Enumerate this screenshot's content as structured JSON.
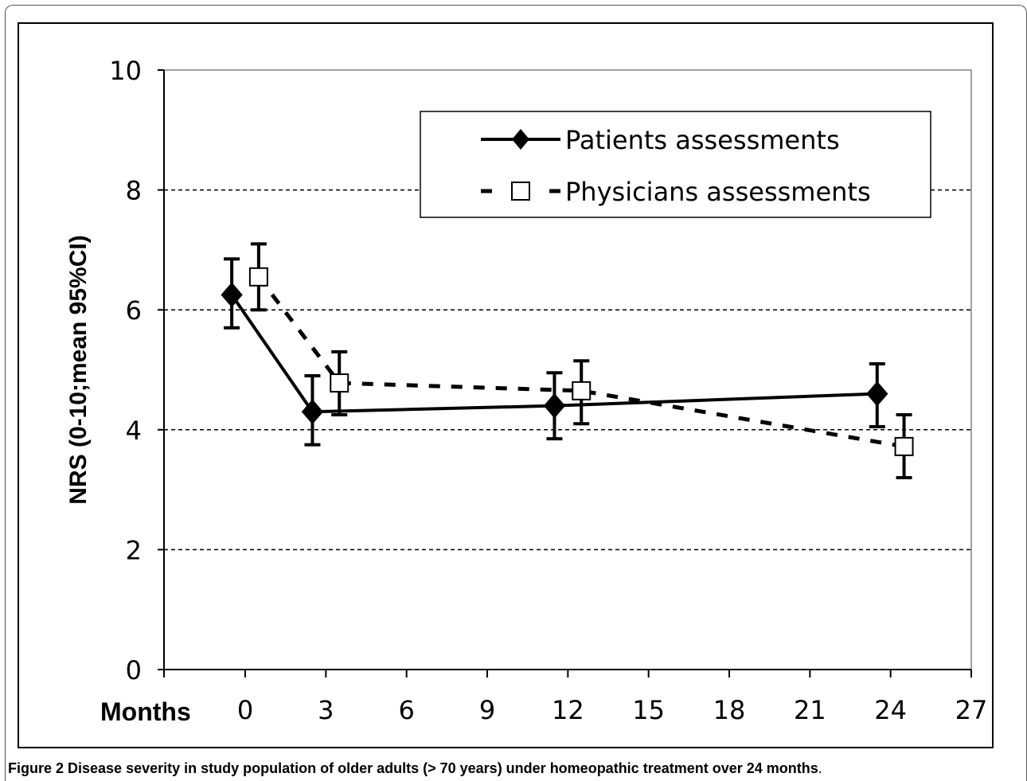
{
  "chart_data": {
    "type": "line",
    "title": "",
    "xlabel": "Months",
    "ylabel": "NRS (0-10;mean 95%CI)",
    "xlim": [
      0,
      27
    ],
    "ylim": [
      0,
      10
    ],
    "x_ticks": [
      0,
      3,
      6,
      9,
      12,
      15,
      18,
      21,
      24,
      27
    ],
    "y_ticks": [
      0,
      2,
      4,
      6,
      8,
      10
    ],
    "grid": "horizontal dashed at 2, 4, 6, 8",
    "legend_position": "top-right",
    "series": [
      {
        "name": "Patients assessments",
        "style": "solid",
        "marker": "diamond-filled",
        "color": "#000000",
        "x": [
          -0.5,
          2.5,
          11.5,
          23.5
        ],
        "y": [
          6.25,
          4.3,
          4.4,
          4.6
        ],
        "ci_low": [
          5.7,
          3.75,
          3.85,
          4.05
        ],
        "ci_high": [
          6.85,
          4.9,
          4.95,
          5.1
        ]
      },
      {
        "name": "Physicians assessments",
        "style": "dashed",
        "marker": "square-open",
        "color": "#000000",
        "x": [
          0.5,
          3.5,
          12.5,
          24.5
        ],
        "y": [
          6.55,
          4.78,
          4.65,
          3.72
        ],
        "ci_low": [
          6.0,
          4.25,
          4.1,
          3.2
        ],
        "ci_high": [
          7.1,
          5.3,
          5.15,
          4.25
        ]
      }
    ]
  },
  "caption": {
    "label": "Figure 2",
    "text": "Disease severity in study population of older adults (> 70 years) under homeopathic treatment over 24 months",
    "end": "."
  }
}
